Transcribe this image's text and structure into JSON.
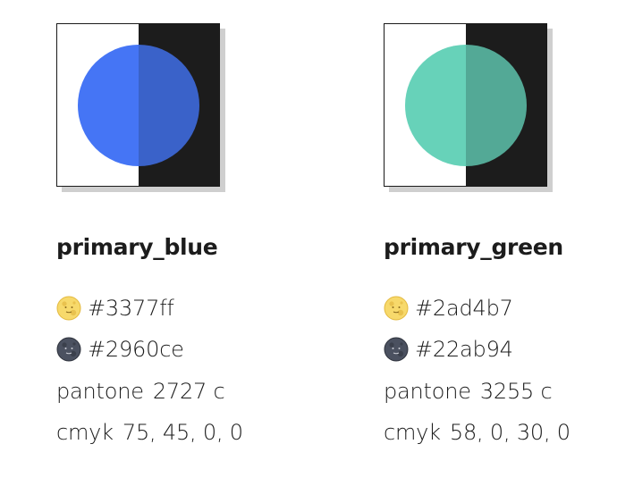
{
  "swatches": [
    {
      "name": "primary_blue",
      "light_hex": "#3377ff",
      "dark_hex": "#2960ce",
      "pantone_label": "pantone",
      "pantone_value": "2727 c",
      "cmyk_label": "cmyk",
      "cmyk_value": "75, 45, 0, 0",
      "light_icon": "full-moon-face-icon",
      "dark_icon": "new-moon-face-icon",
      "colors": {
        "light_circle": "#4575f5",
        "dark_circle": "#3a62c9",
        "light_bg": "#ffffff",
        "dark_bg": "#1c1c1c"
      }
    },
    {
      "name": "primary_green",
      "light_hex": "#2ad4b7",
      "dark_hex": "#22ab94",
      "pantone_label": "pantone",
      "pantone_value": "3255 c",
      "cmyk_label": "cmyk",
      "cmyk_value": "58, 0, 30, 0",
      "light_icon": "full-moon-face-icon",
      "dark_icon": "new-moon-face-icon",
      "colors": {
        "light_circle": "#67d2b9",
        "dark_circle": "#53a996",
        "light_bg": "#ffffff",
        "dark_bg": "#1c1c1c"
      }
    }
  ]
}
